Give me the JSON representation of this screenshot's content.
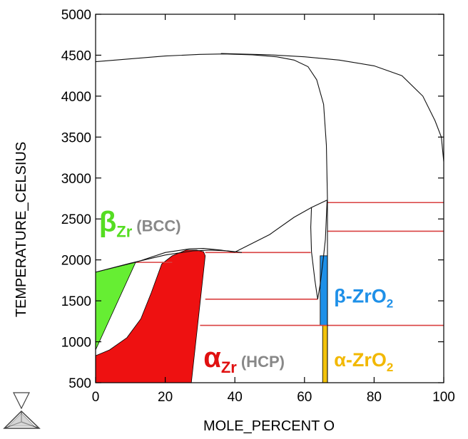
{
  "chart_data": {
    "type": "phase-diagram",
    "xlabel": "MOLE_PERCENT O",
    "ylabel": "TEMPERATURE_CELSIUS",
    "xlim": [
      0,
      100
    ],
    "ylim": [
      500,
      5000
    ],
    "xticks": [
      0,
      20,
      40,
      60,
      80,
      100
    ],
    "yticks": [
      500,
      1000,
      1500,
      2000,
      2500,
      3000,
      3500,
      4000,
      4500,
      5000
    ],
    "grid": false,
    "regions": [
      {
        "label": "β",
        "subscript": "Zr",
        "note": "(BCC)",
        "color": "#66ee33",
        "polygon": [
          [
            0,
            1850
          ],
          [
            0,
            900
          ],
          [
            11.5,
            1970
          ]
        ]
      },
      {
        "label": "α",
        "subscript": "Zr",
        "note": "(HCP)",
        "color": "#ee1111",
        "polygon": [
          [
            0,
            830
          ],
          [
            0,
            500
          ],
          [
            27.5,
            500
          ],
          [
            31.5,
            2050
          ],
          [
            31,
            2100
          ],
          [
            29,
            2120
          ],
          [
            26,
            2120
          ],
          [
            22,
            2050
          ],
          [
            19,
            1950
          ],
          [
            16,
            1600
          ],
          [
            13,
            1280
          ],
          [
            9,
            1050
          ],
          [
            4,
            900
          ]
        ]
      },
      {
        "label": "β-ZrO",
        "subscript": "2",
        "color": "#1e90e8",
        "polygon": [
          [
            64.5,
            2050
          ],
          [
            66.6,
            2050
          ],
          [
            66.6,
            1200
          ],
          [
            64.5,
            1200
          ]
        ]
      },
      {
        "label": "α-ZrO",
        "subscript": "2",
        "color": "#f2c20a",
        "polygon": [
          [
            65.2,
            1200
          ],
          [
            66.6,
            1200
          ],
          [
            66.6,
            500
          ],
          [
            65.2,
            500
          ]
        ]
      }
    ],
    "phase_boundaries": [
      [
        [
          0,
          4420
        ],
        [
          10,
          4455
        ],
        [
          20,
          4490
        ],
        [
          30,
          4510
        ],
        [
          37,
          4515
        ],
        [
          45,
          4505
        ],
        [
          52,
          4480
        ],
        [
          57,
          4440
        ],
        [
          61,
          4360
        ],
        [
          63.5,
          4200
        ],
        [
          65.5,
          3900
        ],
        [
          66.3,
          3400
        ],
        [
          66.6,
          2730
        ]
      ],
      [
        [
          36,
          4520
        ],
        [
          50,
          4505
        ],
        [
          60,
          4480
        ],
        [
          70,
          4440
        ],
        [
          80,
          4370
        ],
        [
          88,
          4250
        ],
        [
          94,
          4000
        ],
        [
          97.5,
          3700
        ],
        [
          99.3,
          3500
        ],
        [
          100,
          3200
        ]
      ],
      [
        [
          0,
          1850
        ],
        [
          10,
          1960
        ],
        [
          20,
          2060
        ],
        [
          28,
          2110
        ],
        [
          33,
          2120
        ],
        [
          38,
          2110
        ],
        [
          42,
          2090
        ]
      ],
      [
        [
          11.5,
          1970
        ],
        [
          20,
          2090
        ],
        [
          27,
          2135
        ],
        [
          31,
          2140
        ],
        [
          36,
          2120
        ],
        [
          40,
          2095
        ]
      ],
      [
        [
          40,
          2095
        ],
        [
          50,
          2310
        ],
        [
          57,
          2520
        ],
        [
          62,
          2640
        ],
        [
          66.5,
          2730
        ]
      ],
      [
        [
          62,
          2640
        ],
        [
          61.8,
          2400
        ],
        [
          62,
          2100
        ],
        [
          63,
          1750
        ],
        [
          63.8,
          1520
        ]
      ],
      [
        [
          63.8,
          1520
        ],
        [
          64.5,
          1700
        ],
        [
          65.5,
          2050
        ],
        [
          66,
          2250
        ],
        [
          66.5,
          2730
        ]
      ],
      [
        [
          66.6,
          2730
        ],
        [
          66.6,
          500
        ]
      ]
    ],
    "isotherms": [
      {
        "t": 2700,
        "x0": 66.6,
        "x1": 100
      },
      {
        "t": 2350,
        "x0": 66.6,
        "x1": 100
      },
      {
        "t": 2090,
        "x0": 31.5,
        "x1": 61.8
      },
      {
        "t": 1970,
        "x0": 11.5,
        "x1": 22
      },
      {
        "t": 1520,
        "x0": 31.5,
        "x1": 63.8
      },
      {
        "t": 1200,
        "x0": 30,
        "x1": 100
      }
    ],
    "labels": [
      {
        "text": "β",
        "sub": "Zr",
        "note": "(BCC)",
        "x": 1,
        "t": 2350,
        "color": "#55dd22"
      },
      {
        "text": "α",
        "sub": "Zr",
        "note": "(HCP)",
        "x": 31,
        "t": 690,
        "color": "#e01010"
      },
      {
        "text": "β-ZrO",
        "sub": "2",
        "x": 68.5,
        "t": 1480,
        "color": "#1e90e8"
      },
      {
        "text": "α-ZrO",
        "sub": "2",
        "x": 68.5,
        "t": 700,
        "color": "#f2b800"
      }
    ]
  }
}
